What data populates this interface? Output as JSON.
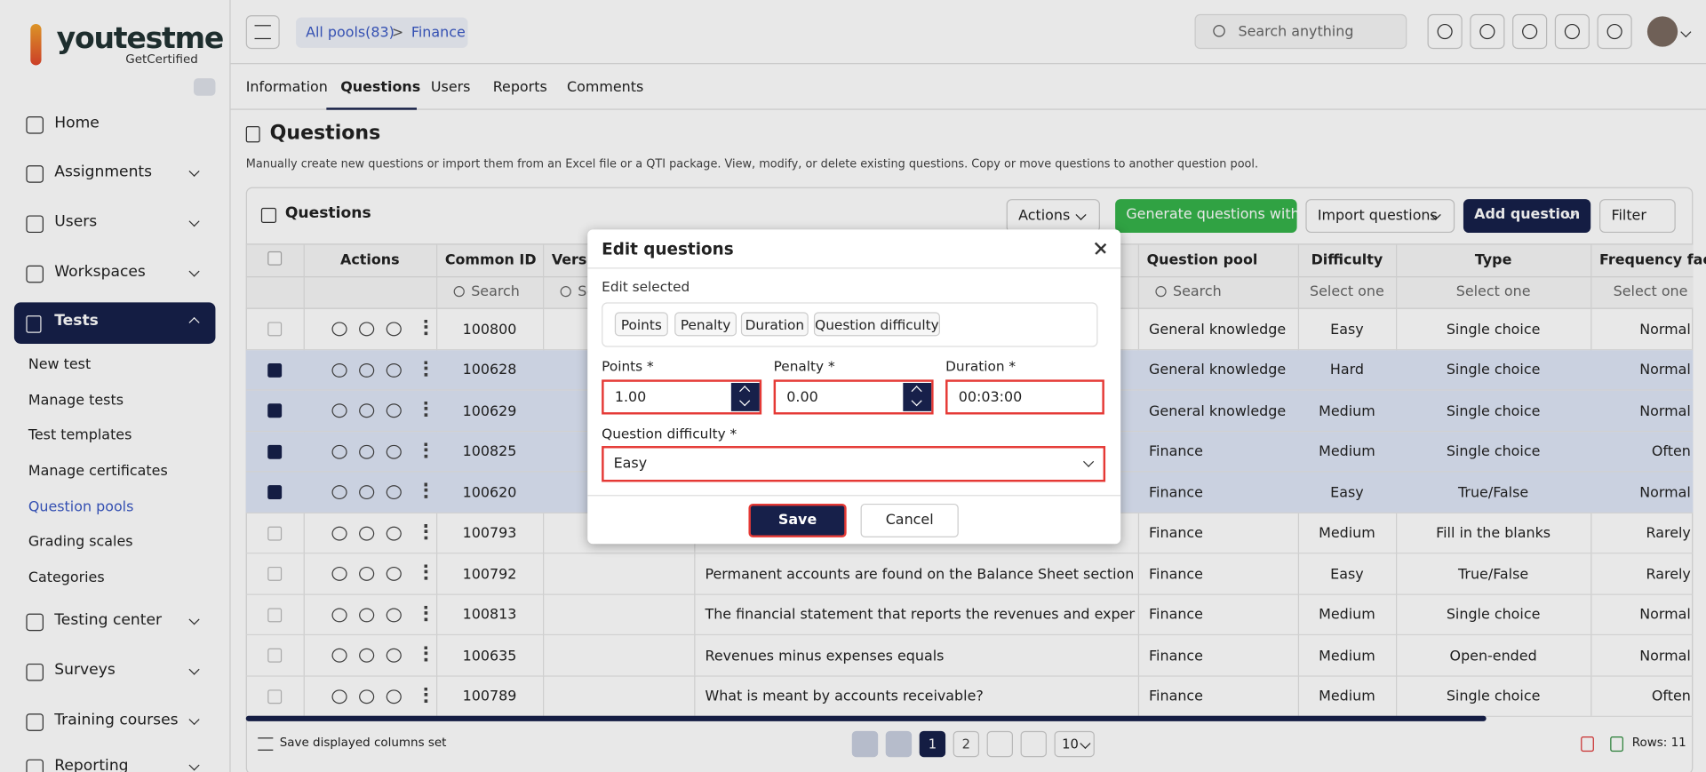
{
  "logo": {
    "brand": "youtestme",
    "tagline": "GetCertified"
  },
  "nav": [
    "Home",
    "Assignments",
    "Users",
    "Workspaces",
    "Tests"
  ],
  "tests_submenu": [
    "New test",
    "Manage tests",
    "Test templates",
    "Manage certificates",
    "Question pools",
    "Grading scales",
    "Categories"
  ],
  "nav_lower": [
    "Testing center",
    "Surveys",
    "Training courses",
    "Reporting"
  ],
  "breadcrumb": [
    "All pools(83)",
    ">",
    "Finance"
  ],
  "search_placeholder": "Search anything",
  "tabs": [
    "Information",
    "Questions",
    "Users",
    "Reports",
    "Comments"
  ],
  "page": {
    "title": "Questions",
    "description": "Manually create new questions or import them from an Excel file or a QTI package. View, modify, or delete existing questions. Copy or move questions to another question pool."
  },
  "card": {
    "title": "Questions",
    "buttons": [
      "Actions",
      "Generate questions with AI",
      "Import questions",
      "Add question",
      "Filter"
    ]
  },
  "table": {
    "columns": {
      "actions": "Actions",
      "id": "Common ID",
      "version": "Version",
      "pool": "Question pool",
      "difficulty": "Difficulty",
      "type": "Type",
      "frequency": "Frequency factor"
    },
    "filters": {
      "id": "Search",
      "version": "Search",
      "pool": "Search",
      "difficulty": "Select one",
      "type": "Select one",
      "frequency": "Select one"
    },
    "rows": [
      {
        "selected": false,
        "id": "100800",
        "pool": "General knowledge",
        "difficulty": "Easy",
        "type": "Single choice",
        "frequency": "Normal"
      },
      {
        "selected": true,
        "id": "100628",
        "pool": "General knowledge",
        "difficulty": "Hard",
        "type": "Single choice",
        "frequency": "Normal"
      },
      {
        "selected": true,
        "id": "100629",
        "pool": "General knowledge",
        "difficulty": "Medium",
        "type": "Single choice",
        "frequency": "Normal"
      },
      {
        "selected": true,
        "id": "100825",
        "pool": "Finance",
        "difficulty": "Medium",
        "type": "Single choice",
        "frequency": "Often"
      },
      {
        "selected": true,
        "id": "100620",
        "pool": "Finance",
        "difficulty": "Easy",
        "type": "True/False",
        "frequency": "Normal"
      },
      {
        "selected": false,
        "id": "100793",
        "pool": "Finance",
        "difficulty": "Medium",
        "type": "Fill in the blanks",
        "frequency": "Rarely"
      },
      {
        "selected": false,
        "id": "100792",
        "text": "Permanent accounts are found on the Balance Sheet section of the w...",
        "pool": "Finance",
        "difficulty": "Easy",
        "type": "True/False",
        "frequency": "Rarely"
      },
      {
        "selected": false,
        "id": "100813",
        "text": "The financial statement that reports the revenues and expenses for a ...",
        "pool": "Finance",
        "difficulty": "Medium",
        "type": "Single choice",
        "frequency": "Normal"
      },
      {
        "selected": false,
        "id": "100635",
        "text": "Revenues minus expenses equals",
        "pool": "Finance",
        "difficulty": "Medium",
        "type": "Open-ended",
        "frequency": "Normal"
      },
      {
        "selected": false,
        "id": "100789",
        "text": "What is meant by accounts receivable?",
        "pool": "Finance",
        "difficulty": "Medium",
        "type": "Single choice",
        "frequency": "Often"
      }
    ]
  },
  "footer": {
    "save_columns": "Save displayed columns set",
    "pages": [
      1,
      2
    ],
    "current_page": 1,
    "page_size": 10,
    "rows": "Rows: 11"
  },
  "modal": {
    "title": "Edit questions",
    "edit_selected": "Edit selected",
    "chips": [
      "Points",
      "Penalty",
      "Duration",
      "Question difficulty"
    ],
    "fields": [
      {
        "label": "Points *",
        "value": "1.00"
      },
      {
        "label": "Penalty *",
        "value": "0.00"
      },
      {
        "label": "Duration *",
        "value": "00:03:00"
      }
    ],
    "difficulty": {
      "label": "Question difficulty *",
      "value": "Easy"
    },
    "save": "Save",
    "cancel": "Cancel"
  }
}
